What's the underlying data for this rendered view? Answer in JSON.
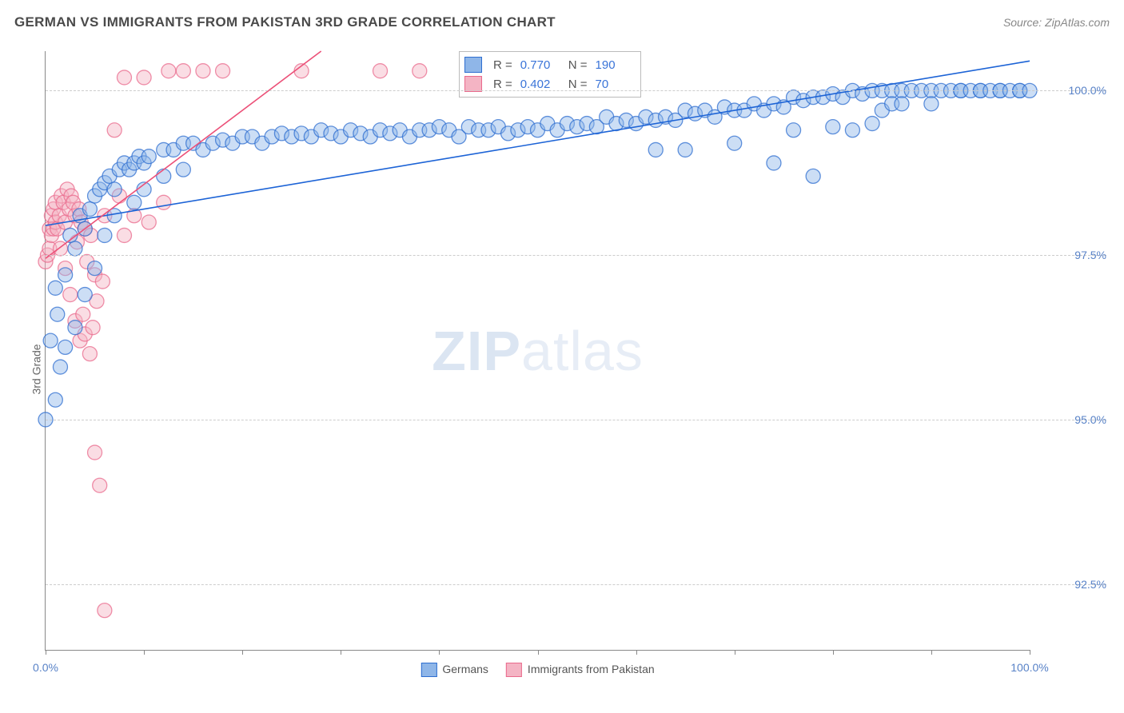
{
  "header": {
    "title": "GERMAN VS IMMIGRANTS FROM PAKISTAN 3RD GRADE CORRELATION CHART",
    "source": "Source: ZipAtlas.com"
  },
  "ylabel": "3rd Grade",
  "watermark": {
    "bold": "ZIP",
    "rest": "atlas"
  },
  "chart": {
    "type": "scatter",
    "xlim": [
      0,
      100
    ],
    "ylim": [
      91.5,
      100.6
    ],
    "ytick_step": 2.5,
    "yticks": [
      92.5,
      95.0,
      97.5,
      100.0
    ],
    "ytick_labels": [
      "92.5%",
      "95.0%",
      "97.5%",
      "100.0%"
    ],
    "xticks": [
      0,
      10,
      20,
      30,
      40,
      50,
      60,
      70,
      80,
      90,
      100
    ],
    "xtick_labels": {
      "0": "0.0%",
      "100": "100.0%"
    },
    "xtick_step": 10,
    "background_color": "#ffffff",
    "grid_color": "#cccccc",
    "marker_radius": 9,
    "marker_opacity": 0.45,
    "marker_stroke_width": 1.3,
    "line_width": 1.6
  },
  "series": {
    "germans": {
      "label": "Germans",
      "fill": "#8fb6e8",
      "stroke": "#2e6ed0",
      "line_color": "#1c63d6",
      "R": "0.770",
      "N": "190",
      "trend": {
        "x1": 0,
        "y1": 97.95,
        "x2": 100,
        "y2": 100.45
      },
      "points": [
        [
          0,
          95.0
        ],
        [
          0.5,
          96.2
        ],
        [
          1,
          97.0
        ],
        [
          1,
          95.3
        ],
        [
          1.2,
          96.6
        ],
        [
          1.5,
          95.8
        ],
        [
          2,
          97.2
        ],
        [
          2,
          96.1
        ],
        [
          2.5,
          97.8
        ],
        [
          3,
          97.6
        ],
        [
          3,
          96.4
        ],
        [
          3.5,
          98.1
        ],
        [
          4,
          97.9
        ],
        [
          4,
          96.9
        ],
        [
          4.5,
          98.2
        ],
        [
          5,
          98.4
        ],
        [
          5,
          97.3
        ],
        [
          5.5,
          98.5
        ],
        [
          6,
          98.6
        ],
        [
          6,
          97.8
        ],
        [
          6.5,
          98.7
        ],
        [
          7,
          98.5
        ],
        [
          7,
          98.1
        ],
        [
          7.5,
          98.8
        ],
        [
          8,
          98.9
        ],
        [
          8.5,
          98.8
        ],
        [
          9,
          98.9
        ],
        [
          9,
          98.3
        ],
        [
          9.5,
          99.0
        ],
        [
          10,
          98.9
        ],
        [
          10,
          98.5
        ],
        [
          10.5,
          99.0
        ],
        [
          12,
          99.1
        ],
        [
          12,
          98.7
        ],
        [
          13,
          99.1
        ],
        [
          14,
          99.2
        ],
        [
          14,
          98.8
        ],
        [
          15,
          99.2
        ],
        [
          16,
          99.1
        ],
        [
          17,
          99.2
        ],
        [
          18,
          99.25
        ],
        [
          19,
          99.2
        ],
        [
          20,
          99.3
        ],
        [
          21,
          99.3
        ],
        [
          22,
          99.2
        ],
        [
          23,
          99.3
        ],
        [
          24,
          99.35
        ],
        [
          25,
          99.3
        ],
        [
          26,
          99.35
        ],
        [
          27,
          99.3
        ],
        [
          28,
          99.4
        ],
        [
          29,
          99.35
        ],
        [
          30,
          99.3
        ],
        [
          31,
          99.4
        ],
        [
          32,
          99.35
        ],
        [
          33,
          99.3
        ],
        [
          34,
          99.4
        ],
        [
          35,
          99.35
        ],
        [
          36,
          99.4
        ],
        [
          37,
          99.3
        ],
        [
          38,
          99.4
        ],
        [
          39,
          99.4
        ],
        [
          40,
          99.45
        ],
        [
          41,
          99.4
        ],
        [
          42,
          99.3
        ],
        [
          43,
          99.45
        ],
        [
          44,
          99.4
        ],
        [
          45,
          99.4
        ],
        [
          46,
          99.45
        ],
        [
          47,
          99.35
        ],
        [
          48,
          99.4
        ],
        [
          49,
          99.45
        ],
        [
          50,
          99.4
        ],
        [
          51,
          99.5
        ],
        [
          52,
          99.4
        ],
        [
          53,
          99.5
        ],
        [
          54,
          99.45
        ],
        [
          55,
          99.5
        ],
        [
          56,
          99.45
        ],
        [
          57,
          99.6
        ],
        [
          58,
          99.5
        ],
        [
          59,
          99.55
        ],
        [
          60,
          99.5
        ],
        [
          61,
          99.6
        ],
        [
          62,
          99.55
        ],
        [
          62,
          99.1
        ],
        [
          63,
          99.6
        ],
        [
          64,
          99.55
        ],
        [
          65,
          99.7
        ],
        [
          65,
          99.1
        ],
        [
          66,
          99.65
        ],
        [
          67,
          99.7
        ],
        [
          68,
          99.6
        ],
        [
          69,
          99.75
        ],
        [
          70,
          99.7
        ],
        [
          70,
          99.2
        ],
        [
          71,
          99.7
        ],
        [
          72,
          99.8
        ],
        [
          73,
          99.7
        ],
        [
          74,
          99.8
        ],
        [
          74,
          98.9
        ],
        [
          75,
          99.75
        ],
        [
          76,
          99.9
        ],
        [
          76,
          99.4
        ],
        [
          77,
          99.85
        ],
        [
          78,
          99.9
        ],
        [
          78,
          98.7
        ],
        [
          79,
          99.9
        ],
        [
          80,
          99.95
        ],
        [
          80,
          99.45
        ],
        [
          81,
          99.9
        ],
        [
          82,
          100.0
        ],
        [
          82,
          99.4
        ],
        [
          83,
          99.95
        ],
        [
          84,
          100.0
        ],
        [
          84,
          99.5
        ],
        [
          85,
          100.0
        ],
        [
          85,
          99.7
        ],
        [
          86,
          100.0
        ],
        [
          86,
          99.8
        ],
        [
          87,
          100.0
        ],
        [
          87,
          99.8
        ],
        [
          88,
          100.0
        ],
        [
          89,
          100.0
        ],
        [
          90,
          100.0
        ],
        [
          90,
          99.8
        ],
        [
          91,
          100.0
        ],
        [
          92,
          100.0
        ],
        [
          93,
          100.0
        ],
        [
          93,
          100.0
        ],
        [
          94,
          100.0
        ],
        [
          95,
          100.0
        ],
        [
          95,
          100.0
        ],
        [
          96,
          100.0
        ],
        [
          97,
          100.0
        ],
        [
          97,
          100.0
        ],
        [
          98,
          100.0
        ],
        [
          99,
          100.0
        ],
        [
          99,
          100.0
        ],
        [
          100,
          100.0
        ]
      ]
    },
    "pakistan": {
      "label": "Immigrants from Pakistan",
      "fill": "#f4b4c4",
      "stroke": "#ea6a8c",
      "line_color": "#ec5078",
      "R": "0.402",
      "N": "70",
      "trend": {
        "x1": 0,
        "y1": 97.45,
        "x2": 28,
        "y2": 100.6
      },
      "points": [
        [
          0,
          97.4
        ],
        [
          0.2,
          97.5
        ],
        [
          0.4,
          97.9
        ],
        [
          0.4,
          97.6
        ],
        [
          0.6,
          98.1
        ],
        [
          0.6,
          97.8
        ],
        [
          0.8,
          98.2
        ],
        [
          0.8,
          97.9
        ],
        [
          1,
          98.3
        ],
        [
          1,
          98.0
        ],
        [
          1.2,
          97.9
        ],
        [
          1.4,
          98.1
        ],
        [
          1.5,
          97.6
        ],
        [
          1.6,
          98.4
        ],
        [
          1.8,
          98.3
        ],
        [
          2,
          98.0
        ],
        [
          2,
          97.3
        ],
        [
          2.2,
          98.5
        ],
        [
          2.4,
          98.2
        ],
        [
          2.5,
          96.9
        ],
        [
          2.6,
          98.4
        ],
        [
          2.8,
          98.3
        ],
        [
          3,
          98.1
        ],
        [
          3,
          96.5
        ],
        [
          3.2,
          97.7
        ],
        [
          3.4,
          98.2
        ],
        [
          3.5,
          96.2
        ],
        [
          3.6,
          98.0
        ],
        [
          3.8,
          96.6
        ],
        [
          4,
          97.9
        ],
        [
          4,
          96.3
        ],
        [
          4.2,
          97.4
        ],
        [
          4.5,
          96.0
        ],
        [
          4.6,
          97.8
        ],
        [
          4.8,
          96.4
        ],
        [
          5,
          97.2
        ],
        [
          5,
          94.5
        ],
        [
          5.2,
          96.8
        ],
        [
          5.5,
          94.0
        ],
        [
          5.8,
          97.1
        ],
        [
          6,
          98.1
        ],
        [
          6,
          92.1
        ],
        [
          7,
          99.4
        ],
        [
          7.5,
          98.4
        ],
        [
          8,
          100.2
        ],
        [
          8,
          97.8
        ],
        [
          9,
          98.1
        ],
        [
          10,
          100.2
        ],
        [
          10.5,
          98.0
        ],
        [
          12,
          98.3
        ],
        [
          12.5,
          100.3
        ],
        [
          14,
          100.3
        ],
        [
          16,
          100.3
        ],
        [
          18,
          100.3
        ],
        [
          26,
          100.3
        ],
        [
          34,
          100.3
        ],
        [
          38,
          100.3
        ]
      ]
    }
  },
  "legend_labels": {
    "germans": "Germans",
    "pakistan": "Immigrants from Pakistan"
  },
  "stats_labels": {
    "R": "R =",
    "N": "N ="
  }
}
